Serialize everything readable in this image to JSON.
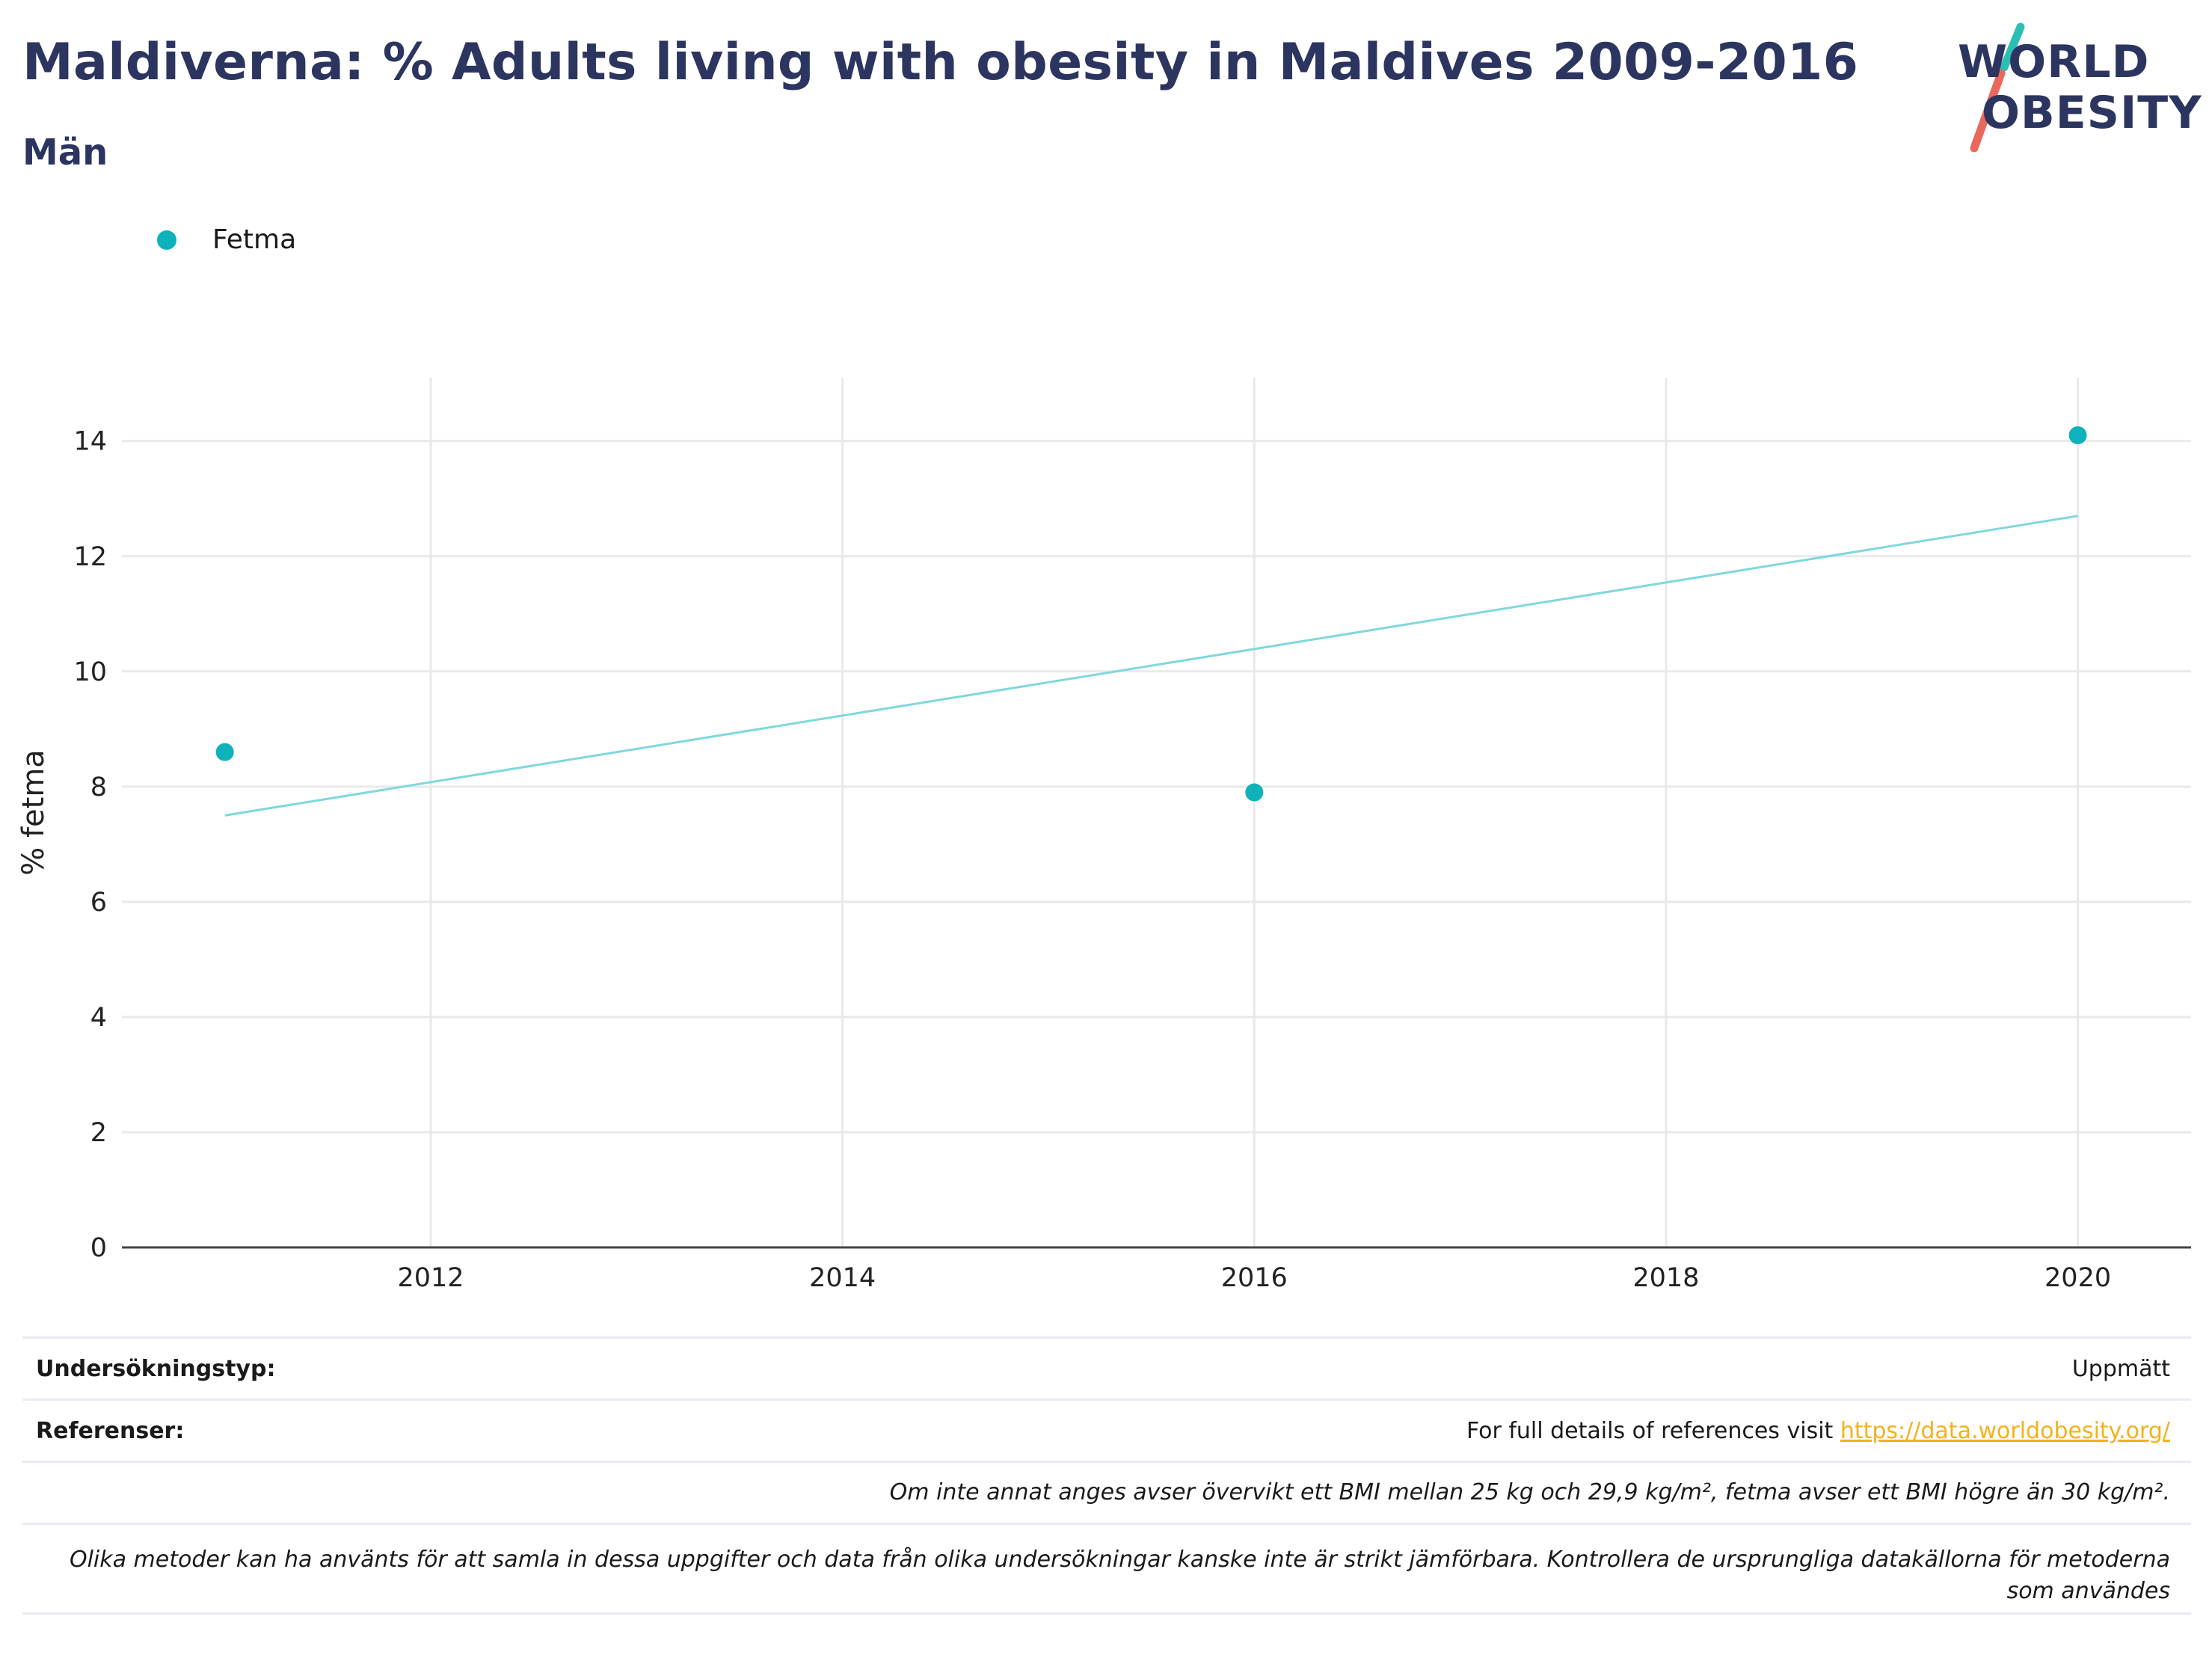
{
  "header": {
    "title": "Maldiverna: % Adults living with obesity in Maldives 2009-2016",
    "subtitle": "Män"
  },
  "logo": {
    "line1": "WORLD",
    "line2": "OBESITY"
  },
  "legend": {
    "label": "Fetma",
    "color": "#0eb2bb"
  },
  "chart_data": {
    "type": "scatter",
    "title": "Maldiverna: % Adults living with obesity in Maldives 2009-2016",
    "subtitle": "Män",
    "xlabel": "",
    "ylabel": "% fetma",
    "xlim": [
      2010.5,
      2020.55
    ],
    "ylim": [
      0,
      15.1
    ],
    "x_ticks": [
      2012,
      2014,
      2016,
      2018,
      2020
    ],
    "y_ticks": [
      0,
      2,
      4,
      6,
      8,
      10,
      12,
      14
    ],
    "grid": true,
    "legend_position": "top-left",
    "series": [
      {
        "name": "Fetma",
        "color": "#0eb2bb",
        "x": [
          2011,
          2016,
          2020
        ],
        "y": [
          8.6,
          7.9,
          14.1
        ]
      }
    ],
    "trendline": {
      "color": "#7fd8dc",
      "x": [
        2011,
        2020
      ],
      "y": [
        7.5,
        12.7
      ]
    }
  },
  "footer": {
    "survey_label": "Undersökningstyp:",
    "survey_value": "Uppmätt",
    "refs_label": "Referenser:",
    "refs_text": "For full details of references visit ",
    "refs_link": "https://data.worldobesity.org/",
    "note1": "Om inte annat anges avser övervikt ett BMI mellan 25 kg och 29,9 kg/m², fetma avser ett BMI högre än 30 kg/m².",
    "note2": "Olika metoder kan ha använts för att samla in dessa uppgifter och data från olika undersökningar kanske inte är strikt jämförbara. Kontrollera de ursprungliga datakällorna för metoderna som användes"
  }
}
